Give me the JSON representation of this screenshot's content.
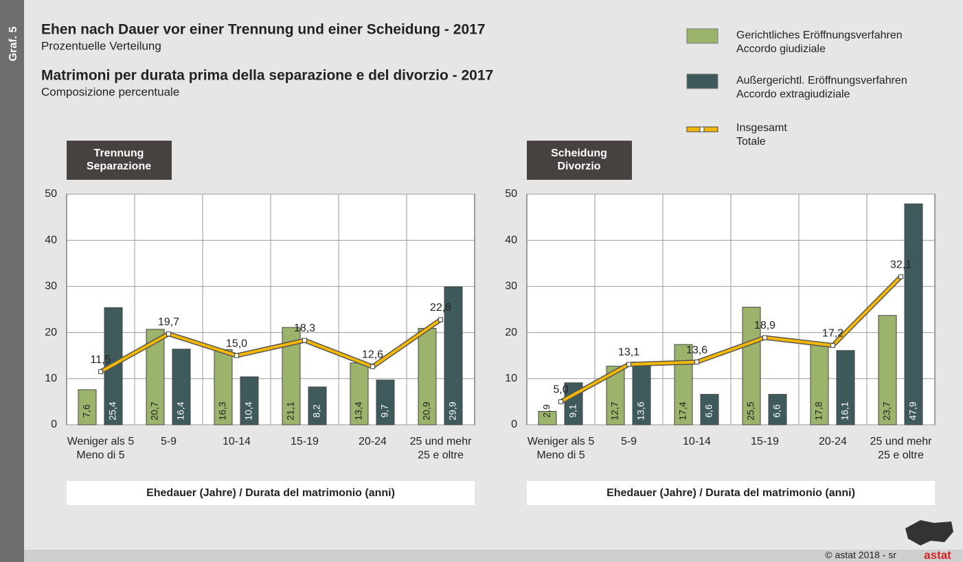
{
  "header": {
    "tag": "Graf. 5",
    "title_de": "Ehen nach Dauer vor einer Trennung und einer Scheidung - 2017",
    "subtitle_de": "Prozentuelle Verteilung",
    "title_it": "Matrimoni per durata prima della separazione e del divorzio - 2017",
    "subtitle_it": "Composizione percentuale"
  },
  "legend": [
    {
      "name": [
        "Gerichtliches Eröffnungsverfahren",
        "Accordo giudiziale"
      ],
      "color": "#9bb36a"
    },
    {
      "name": [
        "Außergerichtl. Eröffnungsverfahren",
        "Accordo extragiudiziale"
      ],
      "color": "#3f5a5a"
    },
    {
      "name": [
        "Insgesamt",
        "Totale"
      ],
      "color": "#f5b800"
    }
  ],
  "footer": {
    "credit": "© astat 2018 - sr",
    "logo": "astat"
  },
  "chart_data": [
    {
      "type": "bar+line",
      "title": [
        "Trennung",
        "Separazione"
      ],
      "xlabel": "Ehedauer (Jahre) / Durata del matrimonio (anni)",
      "categories": [
        [
          "Weniger als 5",
          "Meno di 5"
        ],
        [
          "5-9"
        ],
        [
          "10-14"
        ],
        [
          "15-19"
        ],
        [
          "20-24"
        ],
        [
          "25 und mehr",
          "25 e oltre"
        ]
      ],
      "series": [
        {
          "values": [
            7.6,
            20.7,
            16.3,
            21.1,
            13.4,
            20.9
          ],
          "value_labels": [
            "7,6",
            "20,7",
            "16,3",
            "21,1",
            "13,4",
            "20,9"
          ]
        },
        {
          "values": [
            25.4,
            16.4,
            10.4,
            8.2,
            9.7,
            29.9
          ],
          "value_labels": [
            "25,4",
            "16,4",
            "10,4",
            "8,2",
            "9,7",
            "29,9"
          ]
        },
        {
          "values": [
            11.5,
            19.7,
            15.0,
            18.3,
            12.6,
            22.8
          ],
          "value_labels": [
            "11,5",
            "19,7",
            "15,0",
            "18,3",
            "12,6",
            "22,8"
          ]
        }
      ],
      "ylim": [
        0,
        50
      ],
      "yticks": [
        0,
        10,
        20,
        30,
        40,
        50
      ],
      "grid": true
    },
    {
      "type": "bar+line",
      "title": [
        "Scheidung",
        "Divorzio"
      ],
      "xlabel": "Ehedauer (Jahre) / Durata del matrimonio (anni)",
      "categories": [
        [
          "Weniger als 5",
          "Meno di 5"
        ],
        [
          "5-9"
        ],
        [
          "10-14"
        ],
        [
          "15-19"
        ],
        [
          "20-24"
        ],
        [
          "25 und mehr",
          "25 e oltre"
        ]
      ],
      "series": [
        {
          "values": [
            2.9,
            12.7,
            17.4,
            25.5,
            17.8,
            23.7
          ],
          "value_labels": [
            "2,9",
            "12,7",
            "17,4",
            "25,5",
            "17,8",
            "23,7"
          ]
        },
        {
          "values": [
            9.1,
            13.6,
            6.6,
            6.6,
            16.1,
            47.9
          ],
          "value_labels": [
            "9,1",
            "13,6",
            "6,6",
            "6,6",
            "16,1",
            "47,9"
          ]
        },
        {
          "values": [
            5.0,
            13.1,
            13.6,
            18.9,
            17.2,
            32.1
          ],
          "value_labels": [
            "5,0",
            "13,1",
            "13,6",
            "18,9",
            "17,2",
            "32,1"
          ]
        }
      ],
      "ylim": [
        0,
        50
      ],
      "yticks": [
        0,
        10,
        20,
        30,
        40,
        50
      ],
      "grid": true
    }
  ]
}
